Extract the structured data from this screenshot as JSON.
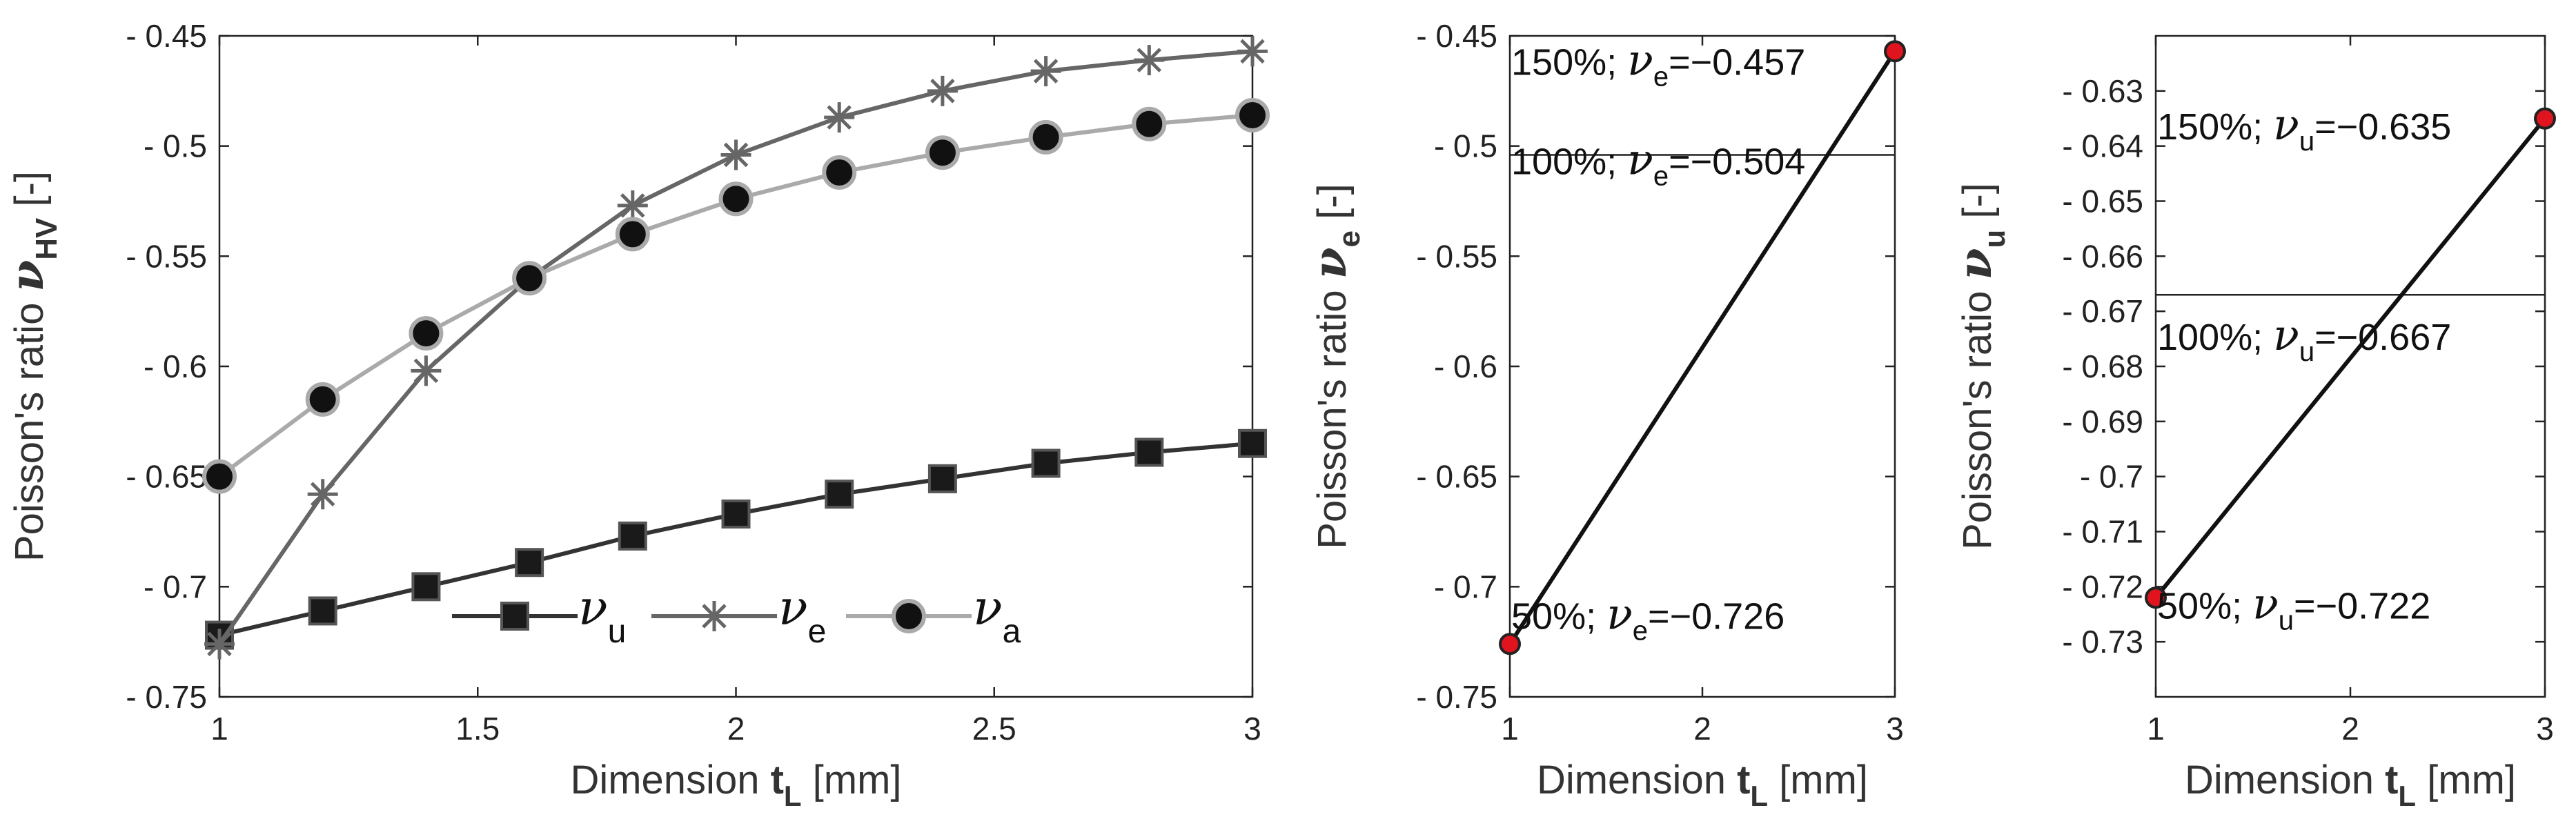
{
  "chart_data": [
    {
      "type": "line",
      "xlabel": {
        "prefix": "Dimension ",
        "symbol": "t",
        "sub": "L",
        "suffix": " [mm]"
      },
      "ylabel": {
        "prefix": "Poisson's ratio ",
        "symbol": "ν",
        "sub": "HV",
        "suffix": " [-]"
      },
      "xlim": [
        1,
        3
      ],
      "ylim": [
        -0.75,
        -0.45
      ],
      "xticks": [
        1,
        1.5,
        2,
        2.5,
        3
      ],
      "xtick_labels": [
        "1",
        "1.5",
        "2",
        "2.5",
        "3"
      ],
      "yticks": [
        -0.75,
        -0.7,
        -0.65,
        -0.6,
        -0.55,
        -0.5,
        -0.45
      ],
      "ytick_labels": [
        "- 0.75",
        "- 0.7",
        "- 0.65",
        "- 0.6",
        "- 0.55",
        "- 0.5",
        "- 0.45"
      ],
      "x": [
        1,
        1.2,
        1.4,
        1.6,
        1.8,
        2,
        2.2,
        2.4,
        2.6,
        2.8,
        3
      ],
      "series": [
        {
          "name": "ν",
          "sub": "u",
          "marker": "square",
          "color": "#333333",
          "values": [
            -0.722,
            -0.711,
            -0.7,
            -0.689,
            -0.677,
            -0.667,
            -0.658,
            -0.651,
            -0.644,
            -0.639,
            -0.635
          ]
        },
        {
          "name": "ν",
          "sub": "e",
          "marker": "star",
          "color": "#666666",
          "values": [
            -0.726,
            -0.658,
            -0.602,
            -0.56,
            -0.527,
            -0.504,
            -0.487,
            -0.475,
            -0.466,
            -0.461,
            -0.457
          ]
        },
        {
          "name": "ν",
          "sub": "a",
          "marker": "circle",
          "color": "#aaaaaa",
          "values": [
            -0.65,
            -0.615,
            -0.585,
            -0.56,
            -0.54,
            -0.524,
            -0.512,
            -0.503,
            -0.496,
            -0.49,
            -0.486
          ]
        }
      ],
      "legend": "bottom-center"
    },
    {
      "type": "line",
      "xlabel": {
        "prefix": "Dimension ",
        "symbol": "t",
        "sub": "L",
        "suffix": " [mm]"
      },
      "ylabel": {
        "prefix": "Poisson's ratio ",
        "symbol": "ν",
        "sub": "e",
        "suffix": " [-]"
      },
      "xlim": [
        1,
        3
      ],
      "ylim": [
        -0.75,
        -0.45
      ],
      "xticks": [
        1,
        2,
        3
      ],
      "xtick_labels": [
        "1",
        "2",
        "3"
      ],
      "yticks": [
        -0.75,
        -0.7,
        -0.65,
        -0.6,
        -0.55,
        -0.5,
        -0.45
      ],
      "ytick_labels": [
        "- 0.75",
        "- 0.7",
        "- 0.65",
        "- 0.6",
        "- 0.55",
        "- 0.5",
        "- 0.45"
      ],
      "x": [
        1,
        3
      ],
      "values": [
        -0.726,
        -0.457
      ],
      "marker_color": "#e0141e",
      "reference_line": -0.504,
      "annotations": [
        {
          "pct": "50%; ",
          "sub": "e",
          "value": "=−0.726",
          "x": 1,
          "y": -0.726
        },
        {
          "pct": "100%; ",
          "sub": "e",
          "value": "=−0.504",
          "x": 1,
          "y": -0.504
        },
        {
          "pct": "150%; ",
          "sub": "e",
          "value": "=−0.457",
          "x": 1,
          "y": -0.457
        }
      ]
    },
    {
      "type": "line",
      "xlabel": {
        "prefix": "Dimension ",
        "symbol": "t",
        "sub": "L",
        "suffix": " [mm]"
      },
      "ylabel": {
        "prefix": "Poisson's ratio ",
        "symbol": "ν",
        "sub": "u",
        "suffix": " [-]"
      },
      "xlim": [
        1,
        3
      ],
      "ylim": [
        -0.74,
        -0.62
      ],
      "xticks": [
        1,
        2,
        3
      ],
      "xtick_labels": [
        "1",
        "2",
        "3"
      ],
      "yticks": [
        -0.73,
        -0.72,
        -0.71,
        -0.7,
        -0.69,
        -0.68,
        -0.67,
        -0.66,
        -0.65,
        -0.64,
        -0.63
      ],
      "ytick_labels": [
        "- 0.73",
        "- 0.72",
        "- 0.71",
        "- 0.7",
        "- 0.69",
        "- 0.68",
        "- 0.67",
        "- 0.66",
        "- 0.65",
        "- 0.64",
        "- 0.63"
      ],
      "x": [
        1,
        3
      ],
      "values": [
        -0.722,
        -0.635
      ],
      "marker_color": "#e0141e",
      "reference_line": -0.667,
      "annotations": [
        {
          "pct": "50%; ",
          "sub": "u",
          "value": "=−0.722",
          "x": 1,
          "y": -0.722
        },
        {
          "pct": "100%; ",
          "sub": "u",
          "value": "=−0.667",
          "x": 1,
          "y": -0.667
        },
        {
          "pct": "150%; ",
          "sub": "u",
          "value": "=−0.635",
          "x": 1,
          "y": -0.635
        }
      ]
    }
  ]
}
